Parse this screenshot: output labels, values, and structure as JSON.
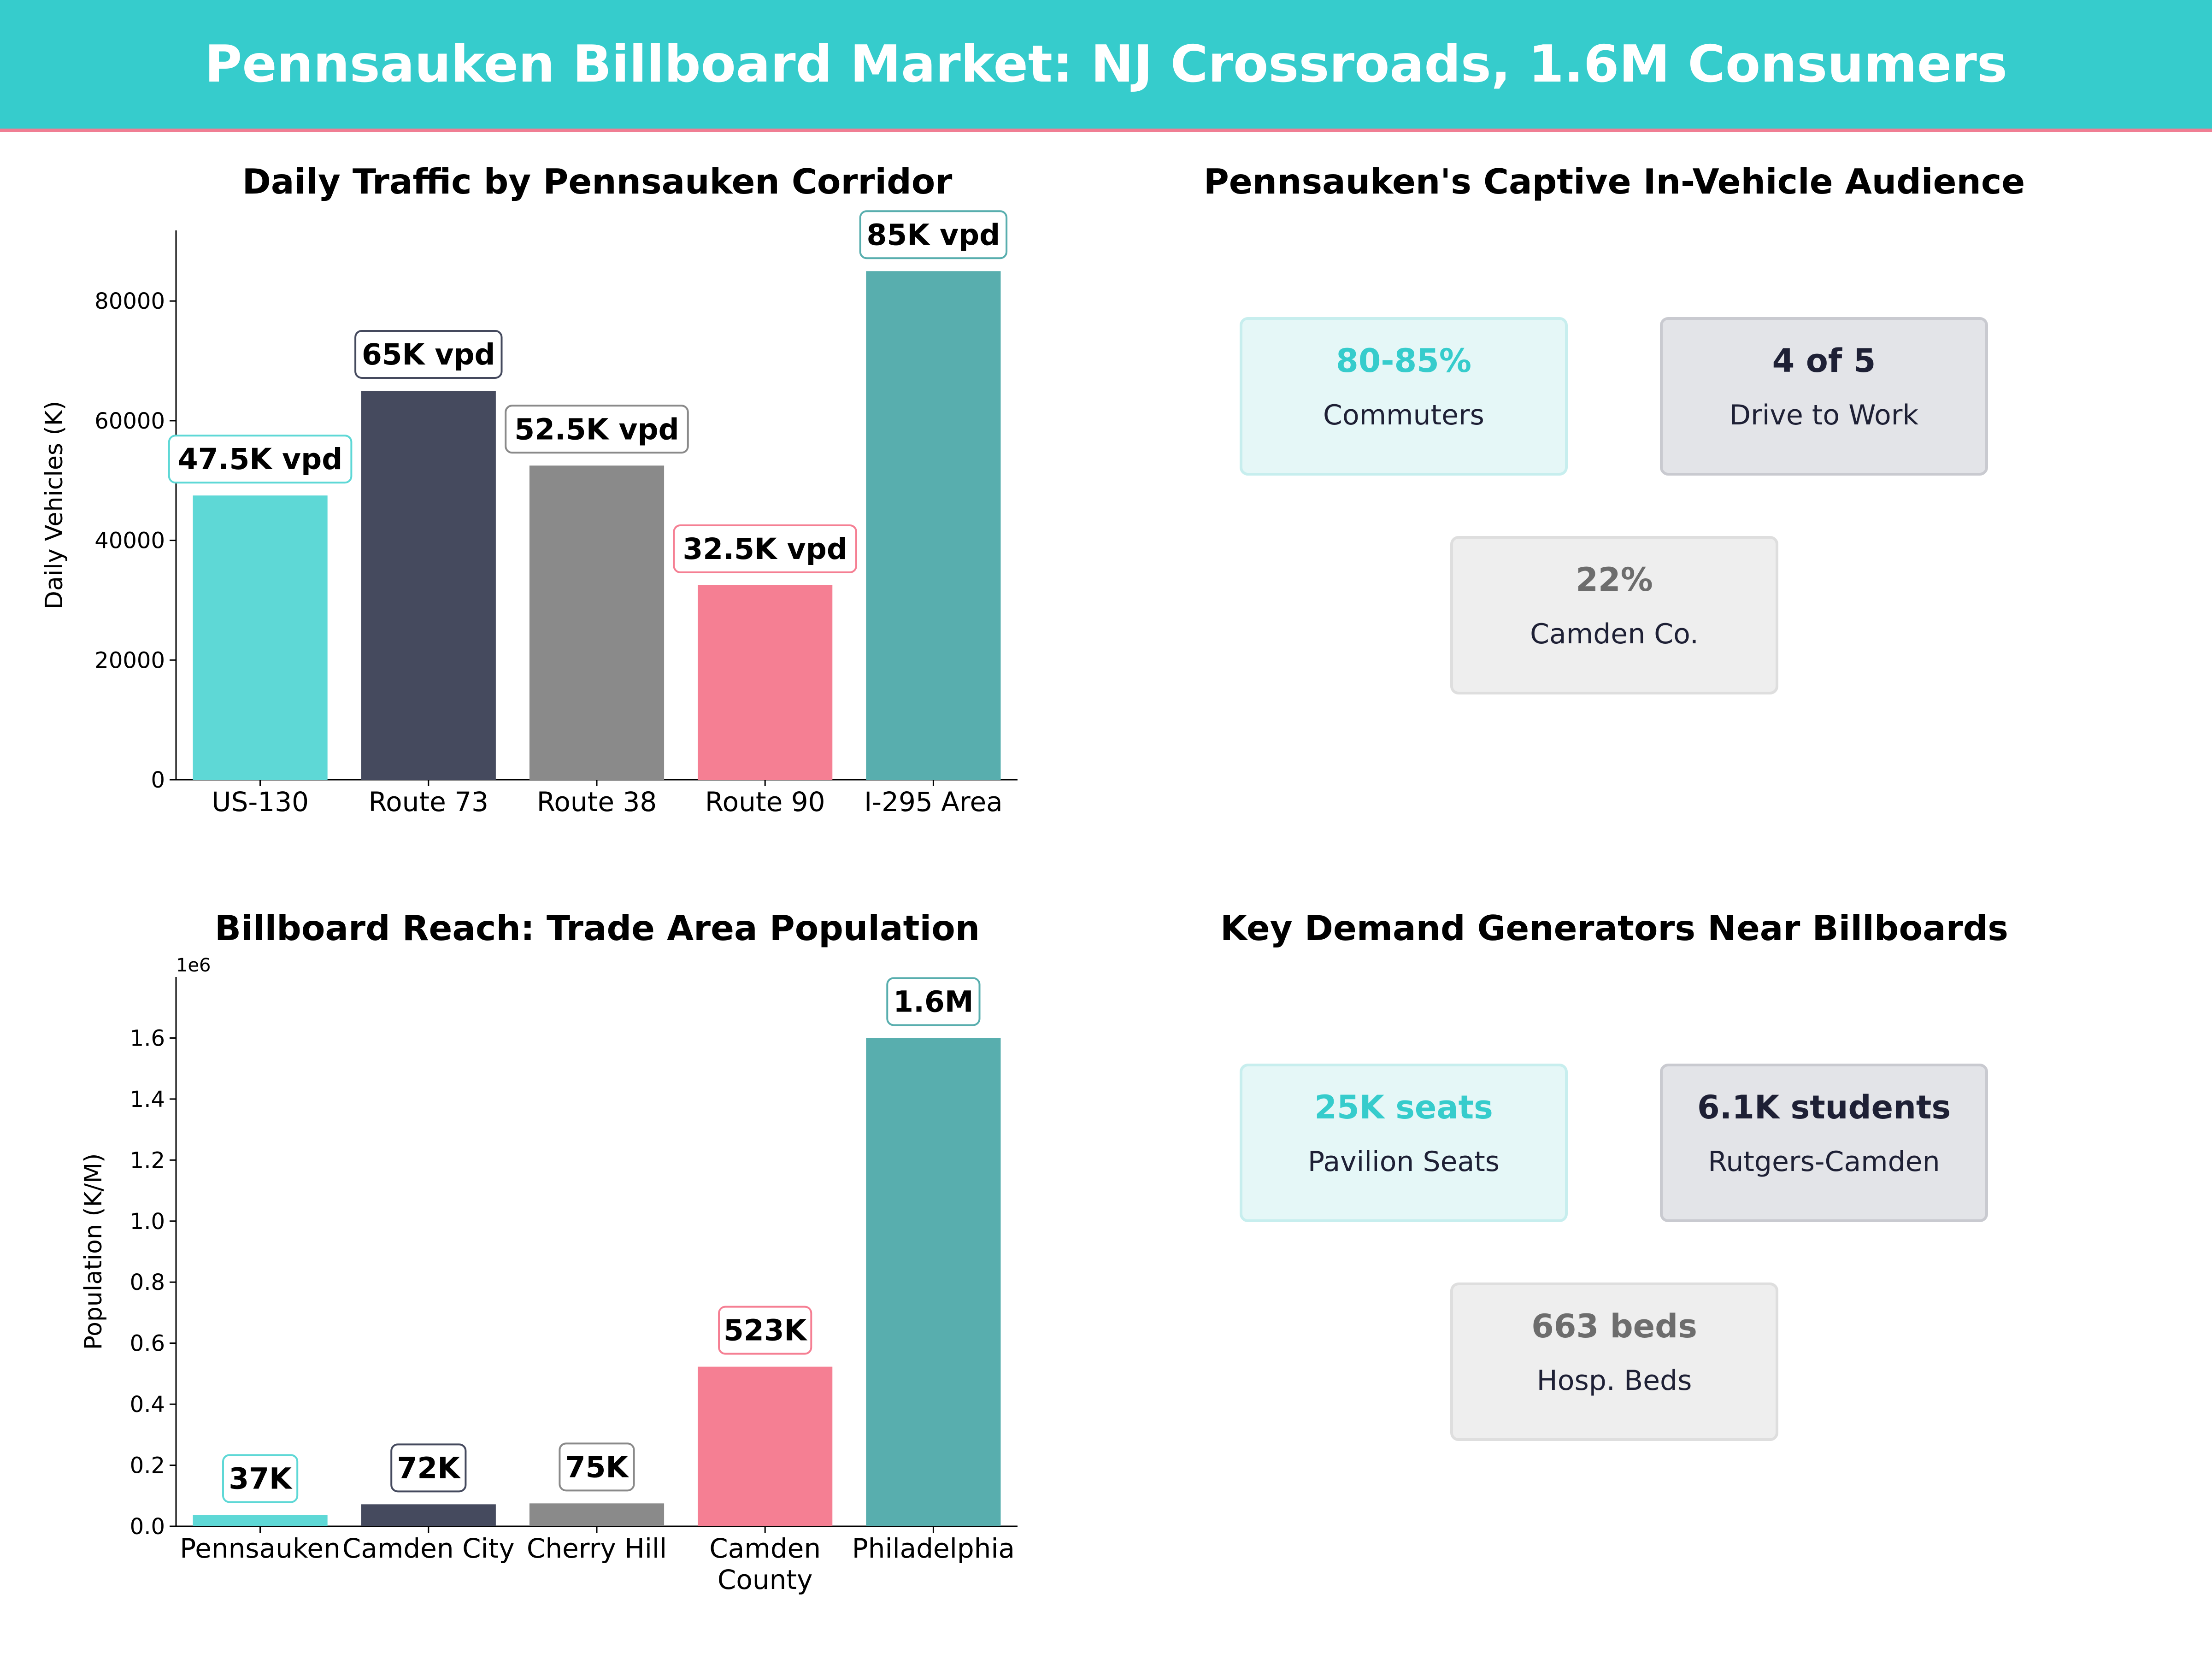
{
  "header": {
    "title": "Pennsauken Billboard Market: NJ Crossroads, 1.6M Consumers"
  },
  "colors": {
    "banner": "#36cccc",
    "banner_line": "#f07e93",
    "bars": [
      "#5ed8d6",
      "#454a5e",
      "#8a8a8a",
      "#f57f93",
      "#58aeae"
    ]
  },
  "chart_data": [
    {
      "type": "bar",
      "title": "Daily Traffic by Pennsauken Corridor",
      "ylabel": "Daily Vehicles (K)",
      "xlabel": "",
      "categories": [
        "US-130",
        "Route 73",
        "Route 38",
        "Route 90",
        "I-295 Area"
      ],
      "values": [
        47500,
        65000,
        52500,
        32500,
        85000
      ],
      "data_labels": [
        "47.5K vpd",
        "65K vpd",
        "52.5K vpd",
        "32.5K vpd",
        "85K vpd"
      ],
      "ylim": [
        0,
        91800
      ],
      "yticks": [
        0,
        20000,
        40000,
        60000,
        80000
      ],
      "ytick_labels": [
        "0",
        "20000",
        "40000",
        "60000",
        "80000"
      ],
      "grid": false
    },
    {
      "type": "bar",
      "title": "Billboard Reach: Trade Area Population",
      "ylabel": "Population (K/M)",
      "xlabel": "",
      "offset_label": "1e6",
      "categories": [
        "Pennsauken",
        "Camden City",
        "Cherry Hill",
        "Camden\nCounty",
        "Philadelphia"
      ],
      "values": [
        37000,
        72000,
        75000,
        523000,
        1600000
      ],
      "data_labels": [
        "37K",
        "72K",
        "75K",
        "523K",
        "1.6M"
      ],
      "ylim": [
        0,
        1800000
      ],
      "yticks": [
        0,
        200000,
        400000,
        600000,
        800000,
        1000000,
        1200000,
        1400000,
        1600000
      ],
      "ytick_labels": [
        "0.0",
        "0.2",
        "0.4",
        "0.6",
        "0.8",
        "1.0",
        "1.2",
        "1.4",
        "1.6"
      ],
      "grid": false
    }
  ],
  "panels": {
    "audience": {
      "title": "Pennsauken's Captive In-Vehicle Audience",
      "stats": [
        {
          "value": "80-85%",
          "label": "Commuters"
        },
        {
          "value": "4 of 5",
          "label": "Drive to Work"
        },
        {
          "value": "22%",
          "label": "Camden Co."
        }
      ]
    },
    "demand": {
      "title": "Key Demand Generators Near Billboards",
      "stats": [
        {
          "value": "25K seats",
          "label": "Pavilion Seats"
        },
        {
          "value": "6.1K students",
          "label": "Rutgers-Camden"
        },
        {
          "value": "663 beds",
          "label": "Hosp. Beds"
        }
      ]
    }
  }
}
